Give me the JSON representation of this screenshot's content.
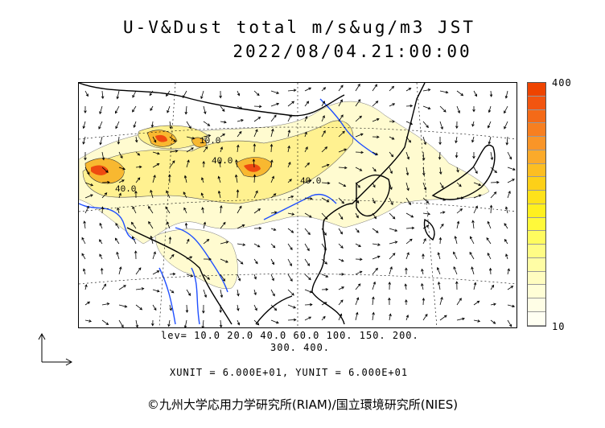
{
  "title": {
    "line1": "U-V&Dust total m/s&ug/m3 JST",
    "line2": "2022/08/04.21:00:00"
  },
  "colorbar": {
    "max_label": "400",
    "min_label": "10",
    "colors": [
      "#ee4400",
      "#f25510",
      "#f46a18",
      "#f77f20",
      "#f99528",
      "#fbaa2a",
      "#fcbe22",
      "#fdd018",
      "#fee21a",
      "#fff01f",
      "#fff93a",
      "#fffb5f",
      "#fffc85",
      "#fffda5",
      "#fffdc0",
      "#fffed6",
      "#fffee6",
      "#fffff2"
    ]
  },
  "levels": {
    "line1": "lev= 10.0 20.0 40.0 60.0 100. 150. 200.",
    "line2": "300. 400."
  },
  "units": "XUNIT = 6.000E+01, YUNIT = 6.000E+01",
  "credit": "©九州大学応用力学研究所(RIAM)/国立環境研究所(NIES)",
  "contour_labels": [
    "40.0",
    "40.0",
    "10.0",
    "40.0"
  ],
  "colors": {
    "land_line": "#000000",
    "river": "#1f4fff",
    "dust_light": "#fffbd0",
    "dust_mid": "#fff190",
    "dust_high": "#f8b830",
    "dust_peak": "#ee4a10"
  }
}
